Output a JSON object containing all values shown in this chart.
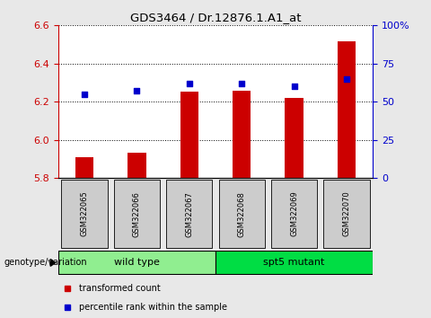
{
  "title": "GDS3464 / Dr.12876.1.A1_at",
  "samples": [
    "GSM322065",
    "GSM322066",
    "GSM322067",
    "GSM322068",
    "GSM322069",
    "GSM322070"
  ],
  "transformed_count": [
    5.91,
    5.935,
    6.255,
    6.26,
    6.22,
    6.515
  ],
  "percentile_rank": [
    55,
    57,
    62,
    62,
    60,
    65
  ],
  "ylim_left": [
    5.8,
    6.6
  ],
  "ylim_right": [
    0,
    100
  ],
  "yticks_left": [
    5.8,
    6.0,
    6.2,
    6.4,
    6.6
  ],
  "yticks_right": [
    0,
    25,
    50,
    75,
    100
  ],
  "ytick_labels_right": [
    "0",
    "25",
    "50",
    "75",
    "100%"
  ],
  "bar_color": "#cc0000",
  "scatter_color": "#0000cc",
  "bar_width": 0.35,
  "groups": [
    {
      "label": "wild type",
      "indices": [
        0,
        1,
        2
      ],
      "color": "#90ee90"
    },
    {
      "label": "spt5 mutant",
      "indices": [
        3,
        4,
        5
      ],
      "color": "#00dd44"
    }
  ],
  "group_row_label": "genotype/variation",
  "legend_items": [
    {
      "color": "#cc0000",
      "label": "transformed count"
    },
    {
      "color": "#0000cc",
      "label": "percentile rank within the sample"
    }
  ],
  "left_axis_color": "#cc0000",
  "right_axis_color": "#0000cc",
  "grid_color": "black",
  "plot_bg_color": "#ffffff",
  "fig_bg_color": "#e8e8e8",
  "sample_box_color": "#cccccc"
}
